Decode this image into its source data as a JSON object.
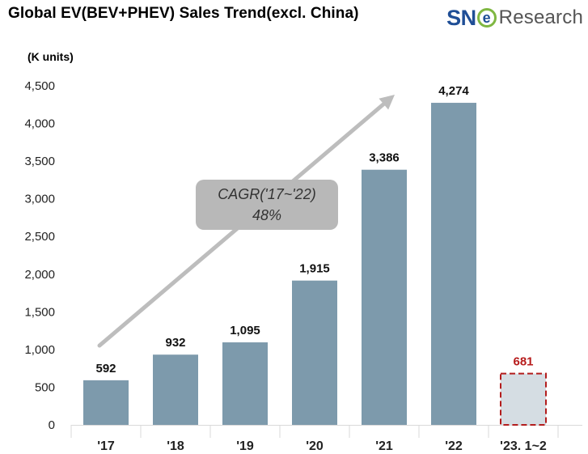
{
  "header": {
    "title": "Global EV(BEV+PHEV)  Sales Trend(excl. China)",
    "logo_text_1": "SN",
    "logo_text_2": "e",
    "logo_text_3": "Research"
  },
  "chart_data": {
    "type": "bar",
    "title": "Global EV(BEV+PHEV)  Sales Trend(excl. China)",
    "ylabel": "(K units)",
    "xlabel": "",
    "ylim": [
      0,
      4500
    ],
    "yticks": [
      0,
      500,
      1000,
      1500,
      2000,
      2500,
      3000,
      3500,
      4000,
      4500
    ],
    "ytick_labels": [
      "0",
      "500",
      "1,000",
      "1,500",
      "2,000",
      "2,500",
      "3,000",
      "3,500",
      "4,000",
      "4,500"
    ],
    "categories": [
      "'17",
      "'18",
      "'19",
      "'20",
      "'21",
      "'22",
      "'23. 1~2"
    ],
    "values": [
      592,
      932,
      1095,
      1915,
      3386,
      4274,
      681
    ],
    "data_labels": [
      "592",
      "932",
      "1,095",
      "1,915",
      "3,386",
      "4,274",
      "681"
    ],
    "highlight_index": 6,
    "annotation": {
      "line1": "CAGR('17~'22)",
      "line2": "48%"
    },
    "colors": {
      "bar": "#7d9aac",
      "highlight_fill": "#d5dde3",
      "highlight_border": "#b31d1d",
      "highlight_label": "#b71c1c",
      "arrow": "#bdbdbd",
      "callout": "#b8b8b8"
    },
    "grid": false,
    "legend": "none"
  }
}
